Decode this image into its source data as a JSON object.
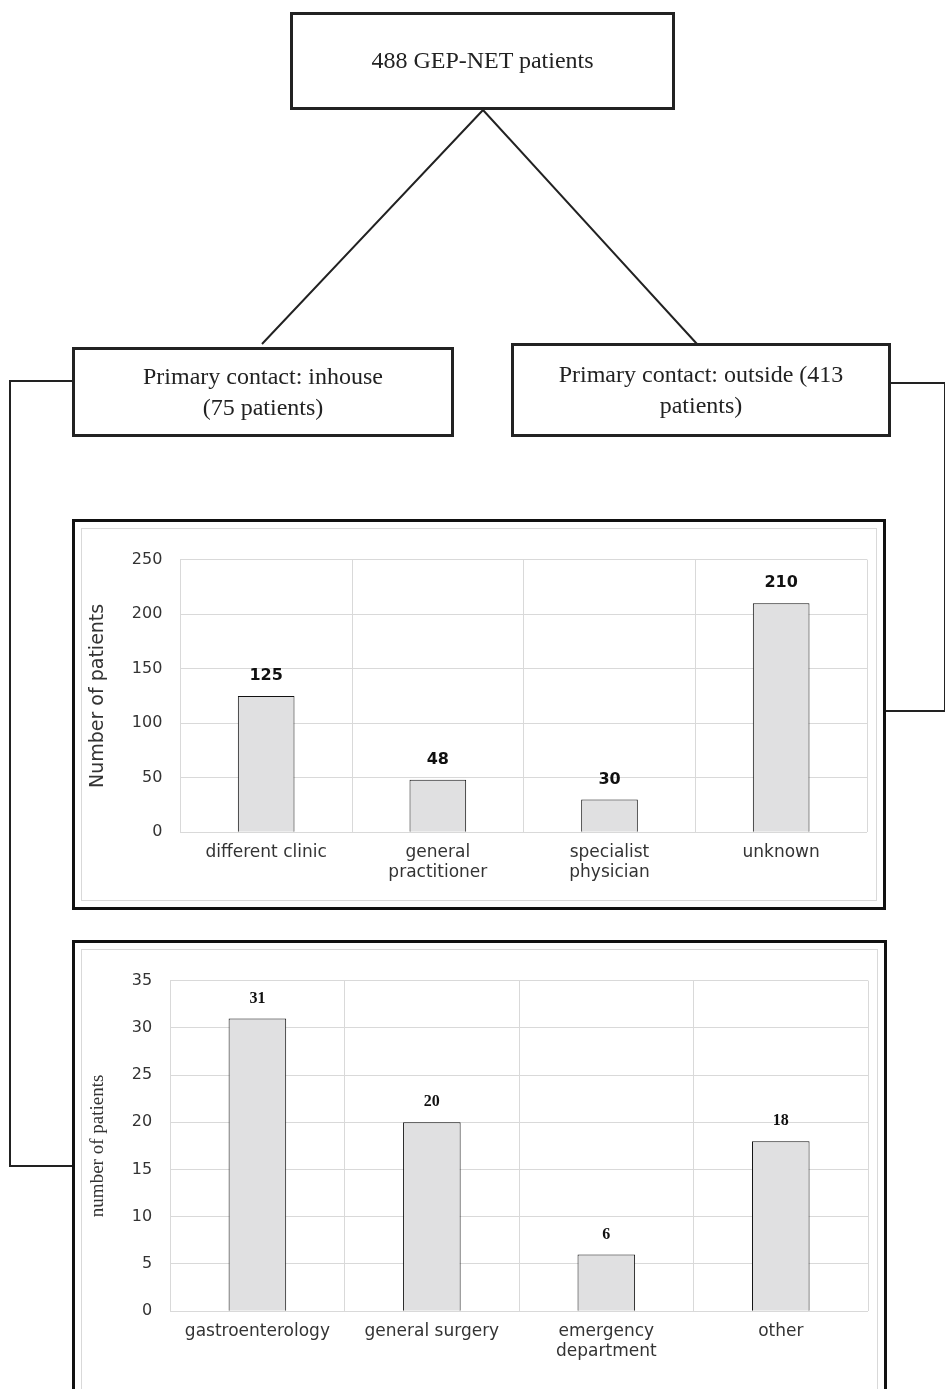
{
  "chart_data": [
    {
      "type": "other",
      "annotations": [
        "488 GEP-NET patients",
        "Primary contact: inhouse (75 patients)",
        "Primary contact: outside (413 patients)"
      ]
    },
    {
      "type": "bar",
      "ylabel": "Number of patients",
      "categories": [
        "different clinic",
        "general practitioner",
        "specialist physician",
        "unknown"
      ],
      "values": [
        125,
        48,
        30,
        210
      ],
      "color": "#e0e0e1",
      "ylim": [
        0,
        250
      ],
      "yticks": [
        0,
        50,
        100,
        150,
        200,
        250
      ],
      "grid": true,
      "data_labels": true
    },
    {
      "type": "bar",
      "ylabel": "number of patients",
      "categories": [
        "gastroenterology",
        "general surgery",
        "emergency department",
        "other"
      ],
      "values": [
        31,
        20,
        6,
        18
      ],
      "color": "#e0e0e1",
      "ylim": [
        0,
        35
      ],
      "yticks": [
        0,
        5,
        10,
        15,
        20,
        25,
        30,
        35
      ],
      "grid": true,
      "data_labels": true
    }
  ]
}
